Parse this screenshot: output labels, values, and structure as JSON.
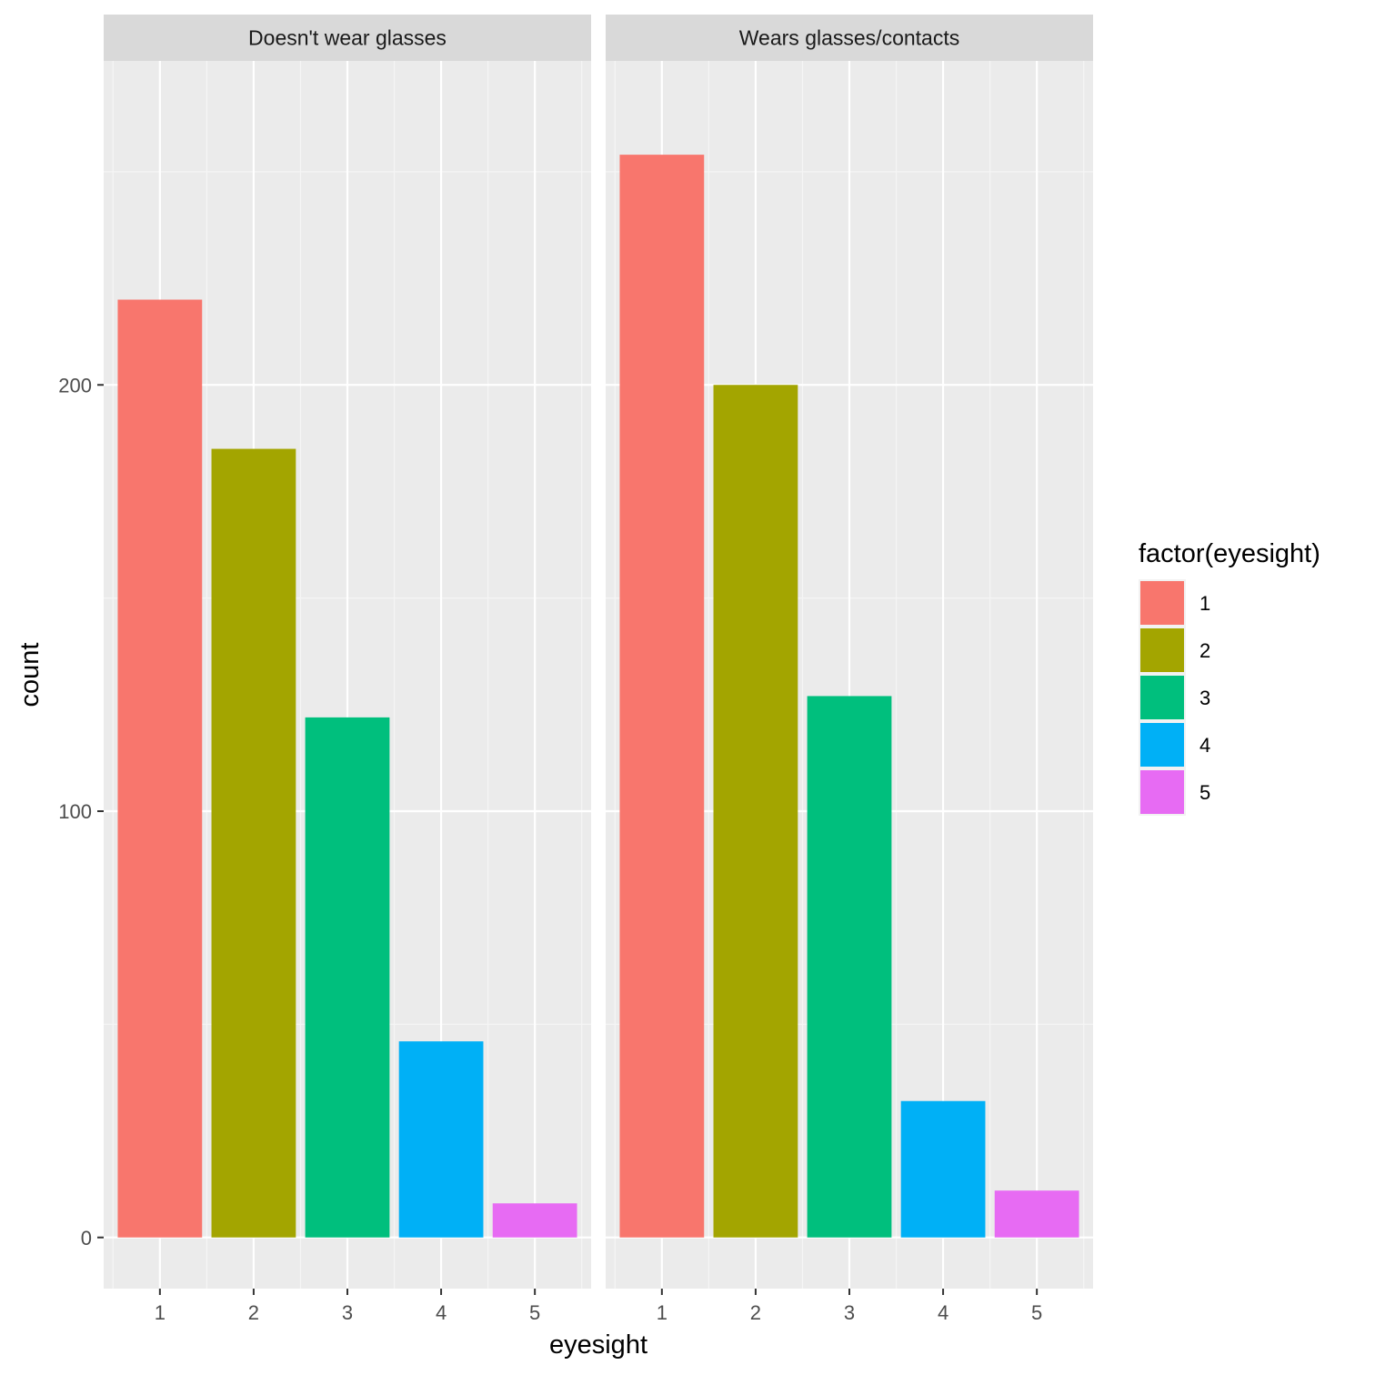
{
  "chart_data": {
    "type": "bar",
    "facet_by": "glasses",
    "xlabel": "eyesight",
    "ylabel": "count",
    "categories": [
      "1",
      "2",
      "3",
      "4",
      "5"
    ],
    "ylim": [
      -12,
      276
    ],
    "y_ticks": [
      0,
      100,
      200
    ],
    "grid": true,
    "legend": {
      "title": "factor(eyesight)",
      "position": "right",
      "entries": [
        {
          "label": "1",
          "color": "#F8766D"
        },
        {
          "label": "2",
          "color": "#A3A500"
        },
        {
          "label": "3",
          "color": "#00BF7D"
        },
        {
          "label": "4",
          "color": "#00B0F6"
        },
        {
          "label": "5",
          "color": "#E76BF3"
        }
      ]
    },
    "panels": [
      {
        "title": "Doesn't wear glasses",
        "values": [
          220,
          185,
          122,
          46,
          8
        ]
      },
      {
        "title": "Wears glasses/contacts",
        "values": [
          254,
          200,
          127,
          32,
          11
        ]
      }
    ]
  }
}
